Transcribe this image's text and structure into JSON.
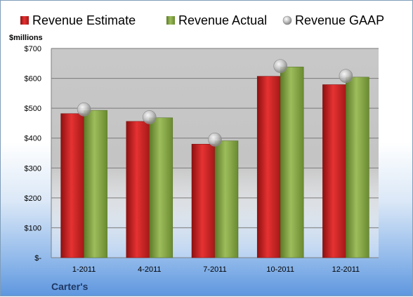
{
  "chart_data": {
    "type": "bar",
    "unit_label": "$millions",
    "company": "Carter's",
    "categories": [
      "1-2011",
      "4-2011",
      "7-2011",
      "10-2011",
      "12-2011"
    ],
    "series": [
      {
        "name": "Revenue Estimate",
        "kind": "bar",
        "color": "#d42a2a",
        "values": [
          482,
          456,
          380,
          607,
          579
        ]
      },
      {
        "name": "Revenue Actual",
        "kind": "bar",
        "color": "#8fad4e",
        "values": [
          493,
          468,
          391,
          638,
          604
        ]
      },
      {
        "name": "Revenue GAAP",
        "kind": "marker",
        "color": "#b8b8b8",
        "values": [
          496,
          470,
          395,
          641,
          608
        ]
      }
    ],
    "ylim": [
      0,
      700
    ],
    "yticks": [
      0,
      100,
      200,
      300,
      400,
      500,
      600,
      700
    ],
    "ytick_labels": [
      "$-",
      "$100",
      "$200",
      "$300",
      "$400",
      "$500",
      "$600",
      "$700"
    ],
    "grid": true,
    "legend_position": "top"
  }
}
